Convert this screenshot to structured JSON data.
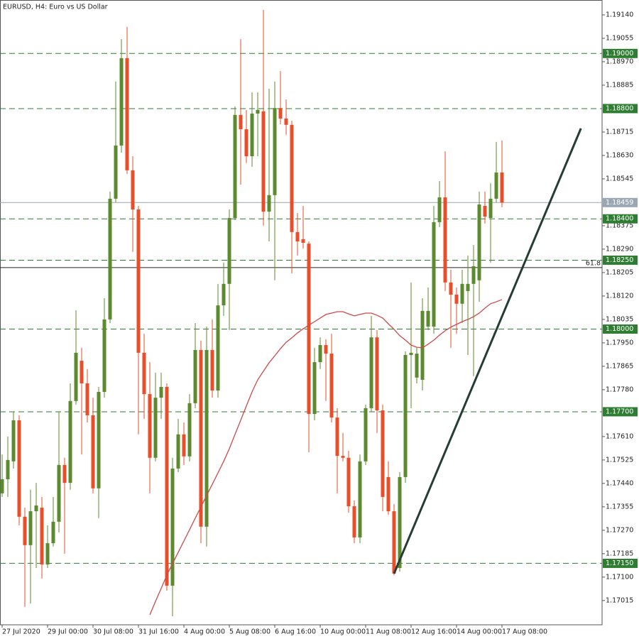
{
  "chart_data": {
    "type": "candlestick",
    "title": "EURUSD, H4:  Euro vs US Dollar",
    "up_color": "#5c8a2e",
    "down_color": "#e84e2a",
    "ylim": [
      1.16927,
      1.19194
    ],
    "yticks": [
      {
        "value": 1.1914,
        "label": "1.19140"
      },
      {
        "value": 1.19055,
        "label": "1.19055"
      },
      {
        "value": 1.1897,
        "label": "1.18970"
      },
      {
        "value": 1.18885,
        "label": "1.18885"
      },
      {
        "value": 1.18715,
        "label": "1.18715"
      },
      {
        "value": 1.1863,
        "label": "1.18630"
      },
      {
        "value": 1.18545,
        "label": "1.18545"
      },
      {
        "value": 1.18375,
        "label": "1.18375"
      },
      {
        "value": 1.1829,
        "label": "1.18290"
      },
      {
        "value": 1.18205,
        "label": "1.18205"
      },
      {
        "value": 1.1812,
        "label": "1.18120"
      },
      {
        "value": 1.18035,
        "label": "1.18035"
      },
      {
        "value": 1.1795,
        "label": "1.17950"
      },
      {
        "value": 1.17865,
        "label": "1.17865"
      },
      {
        "value": 1.1778,
        "label": "1.17780"
      },
      {
        "value": 1.1761,
        "label": "1.17610"
      },
      {
        "value": 1.17525,
        "label": "1.17525"
      },
      {
        "value": 1.1744,
        "label": "1.17440"
      },
      {
        "value": 1.17355,
        "label": "1.17355"
      },
      {
        "value": 1.1727,
        "label": "1.17270"
      },
      {
        "value": 1.17185,
        "label": "1.17185"
      },
      {
        "value": 1.171,
        "label": "1.17100"
      },
      {
        "value": 1.17015,
        "label": "1.17015"
      }
    ],
    "categories": [
      "27 Jul 2020",
      null,
      null,
      null,
      null,
      null,
      null,
      null,
      "29 Jul 00:00",
      null,
      null,
      null,
      null,
      null,
      null,
      null,
      "30 Jul 08:00",
      null,
      null,
      null,
      null,
      null,
      null,
      null,
      "31 Jul 16:00",
      null,
      null,
      null,
      null,
      null,
      null,
      null,
      "4 Aug 00:00",
      null,
      null,
      null,
      null,
      null,
      null,
      null,
      "5 Aug 08:00",
      null,
      null,
      null,
      null,
      null,
      null,
      null,
      "6 Aug 16:00",
      null,
      null,
      null,
      null,
      null,
      null,
      null,
      "10 Aug 00:00",
      null,
      null,
      null,
      null,
      null,
      null,
      null,
      "11 Aug 08:00",
      null,
      null,
      null,
      null,
      null,
      null,
      null,
      "12 Aug 16:00",
      null,
      null,
      null,
      null,
      null,
      null,
      null,
      "14 Aug 00:00",
      null,
      null,
      null,
      null,
      null,
      null,
      null,
      "17 Aug 08:00"
    ],
    "open": [
      1.17404,
      1.17455,
      1.1752,
      1.17669,
      1.17319,
      1.17216,
      1.17339,
      1.17352,
      1.17146,
      1.17223,
      1.17301,
      1.17507,
      1.17442,
      1.17739,
      1.17885,
      1.17803,
      1.17687,
      1.17422,
      1.17772,
      1.18035,
      1.18473,
      1.18666,
      1.18983,
      1.18576,
      1.18434,
      1.17914,
      1.17764,
      1.17533,
      1.17751,
      1.1779,
      1.17069,
      1.17494,
      1.17618,
      1.17538,
      1.17731,
      1.17924,
      1.17283,
      1.17924,
      1.17777,
      1.18086,
      1.18164,
      1.18403,
      1.18777,
      1.18725,
      1.18627,
      1.18782,
      1.1879,
      1.18426,
      1.18486,
      1.18802,
      1.18764,
      1.18741,
      1.18352,
      1.18326,
      1.1831,
      1.17692,
      1.1788,
      1.17942,
      1.17911,
      1.17679,
      1.1754,
      1.17533,
      1.17357,
      1.17244,
      1.1752,
      1.17713,
      1.1797,
      1.17705,
      1.17463,
      1.17339,
      1.17133,
      1.17463,
      1.17906,
      1.17824,
      1.17816,
      1.18009,
      1.18009,
      1.18388,
      1.18478,
      1.18169,
      1.18125,
      1.18092,
      1.18138,
      1.18164,
      1.18177,
      1.18447,
      1.18403,
      1.18473,
      1.18568
    ],
    "high": [
      1.17545,
      1.1761,
      1.177,
      1.17687,
      1.17352,
      1.17417,
      1.17442,
      1.17391,
      1.17288,
      1.17391,
      1.177,
      1.17533,
      1.17803,
      1.18068,
      1.17932,
      1.17855,
      1.17751,
      1.1779,
      1.18112,
      1.18499,
      1.18898,
      1.19052,
      1.19096,
      1.18627,
      1.18447,
      1.17983,
      1.1788,
      1.17842,
      1.17842,
      1.17803,
      1.17533,
      1.17674,
      1.17661,
      1.17764,
      1.18022,
      1.17958,
      1.18009,
      1.18035,
      1.18164,
      1.18241,
      1.18434,
      1.18808,
      1.19052,
      1.18795,
      1.18859,
      1.18859,
      1.19158,
      1.18872,
      1.18898,
      1.18936,
      1.18833,
      1.18756,
      1.18421,
      1.18447,
      1.18318,
      1.17932,
      1.1797,
      1.17963,
      1.17983,
      1.17713,
      1.17623,
      1.17558,
      1.17378,
      1.17545,
      1.17726,
      1.18048,
      1.17996,
      1.17726,
      1.1752,
      1.17365,
      1.17481,
      1.17919,
      1.18169,
      1.17932,
      1.18112,
      1.18151,
      1.18447,
      1.18537,
      1.18645,
      1.18215,
      1.18151,
      1.18215,
      1.18267,
      1.18305,
      1.18499,
      1.18499,
      1.18529,
      1.18679,
      1.18684
    ],
    "low": [
      1.17391,
      1.17391,
      1.17494,
      1.17288,
      1.16992,
      1.17004,
      1.17133,
      1.17095,
      1.17133,
      1.17211,
      1.17262,
      1.17185,
      1.17417,
      1.17726,
      1.17545,
      1.17661,
      1.17404,
      1.17314,
      1.17751,
      1.18022,
      1.1846,
      1.1864,
      1.18563,
      1.1828,
      1.17618,
      1.17674,
      1.17404,
      1.1752,
      1.17674,
      1.17051,
      1.16958,
      1.17481,
      1.17507,
      1.1752,
      1.17713,
      1.17223,
      1.17211,
      1.17751,
      1.17751,
      1.18048,
      1.17996,
      1.18395,
      1.18524,
      1.18602,
      1.18589,
      1.18627,
      1.18375,
      1.18318,
      1.18177,
      1.18743,
      1.18705,
      1.18202,
      1.18267,
      1.18292,
      1.17553,
      1.17669,
      1.17855,
      1.17739,
      1.17661,
      1.17404,
      1.1752,
      1.17334,
      1.17223,
      1.17223,
      1.17507,
      1.177,
      1.17623,
      1.17339,
      1.17326,
      1.17107,
      1.1712,
      1.17442,
      1.17713,
      1.17803,
      1.17777,
      1.17996,
      1.17983,
      1.1837,
      1.18138,
      1.17932,
      1.17983,
      1.18022,
      1.17906,
      1.17829,
      1.18099,
      1.18383,
      1.18241,
      1.1846,
      1.18442
    ],
    "close": [
      1.17455,
      1.17525,
      1.17669,
      1.17319,
      1.17216,
      1.17339,
      1.1736,
      1.17146,
      1.17223,
      1.17301,
      1.17507,
      1.17442,
      1.17739,
      1.17914,
      1.17803,
      1.17687,
      1.17422,
      1.17772,
      1.18035,
      1.18473,
      1.18666,
      1.18983,
      1.18576,
      1.18434,
      1.17914,
      1.17764,
      1.17533,
      1.17751,
      1.1779,
      1.17069,
      1.17494,
      1.17618,
      1.17538,
      1.17731,
      1.17924,
      1.17283,
      1.17924,
      1.17777,
      1.18086,
      1.18164,
      1.18403,
      1.18777,
      1.18725,
      1.18627,
      1.18782,
      1.18795,
      1.18426,
      1.18486,
      1.18802,
      1.18764,
      1.18741,
      1.18352,
      1.18318,
      1.18313,
      1.17692,
      1.1788,
      1.17942,
      1.17911,
      1.17679,
      1.1754,
      1.17533,
      1.17357,
      1.17244,
      1.1752,
      1.17713,
      1.1797,
      1.17705,
      1.17391,
      1.17339,
      1.17113,
      1.17463,
      1.17906,
      1.17914,
      1.17911,
      1.18066,
      1.18066,
      1.18388,
      1.18478,
      1.18169,
      1.18125,
      1.18092,
      1.18164,
      1.18164,
      1.18228,
      1.18452,
      1.18408,
      1.18473,
      1.18568,
      1.18459
    ],
    "moving_average": {
      "color": "#cc4a4a",
      "values": [
        null,
        null,
        null,
        null,
        null,
        null,
        null,
        null,
        null,
        null,
        null,
        null,
        null,
        null,
        null,
        null,
        null,
        null,
        null,
        null,
        null,
        null,
        null,
        null,
        null,
        null,
        1.16963,
        1.17012,
        1.17059,
        1.17107,
        1.17149,
        1.1719,
        1.17231,
        1.17272,
        1.17314,
        1.17355,
        1.17396,
        1.17437,
        1.17478,
        1.1752,
        1.17566,
        1.17618,
        1.17669,
        1.17721,
        1.17772,
        1.17816,
        1.17847,
        1.17878,
        1.17903,
        1.17929,
        1.17952,
        1.17968,
        1.17986,
        1.18001,
        1.18014,
        1.18027,
        1.1804,
        1.18053,
        1.18058,
        1.18063,
        1.18063,
        1.18055,
        1.18048,
        1.18053,
        1.18058,
        1.18058,
        1.1805,
        1.1804,
        1.18019,
        1.17999,
        1.17976,
        1.1796,
        1.17942,
        1.17934,
        1.17932,
        1.17945,
        1.1796,
        1.17978,
        1.17994,
        1.18007,
        1.18017,
        1.18027,
        1.18035,
        1.18045,
        1.18058,
        1.18076,
        1.18092,
        1.18099,
        1.18107
      ]
    },
    "levels": [
      {
        "value": 1.19,
        "label": "1.19000"
      },
      {
        "value": 1.188,
        "label": "1.18800"
      },
      {
        "value": 1.184,
        "label": "1.18400"
      },
      {
        "value": 1.1825,
        "label": "1.18250"
      },
      {
        "value": 1.18,
        "label": "1.18000"
      },
      {
        "value": 1.177,
        "label": "1.17700"
      },
      {
        "value": 1.1715,
        "label": "1.17150"
      }
    ],
    "level_color": "#2e7d32",
    "current_price": 1.18459,
    "fib_line": {
      "price": 1.18223,
      "label": "61.8"
    },
    "trendline": {
      "x": [
        69,
        101.9
      ],
      "y": [
        1.17113,
        1.18728
      ],
      "color": "#253d35"
    }
  }
}
